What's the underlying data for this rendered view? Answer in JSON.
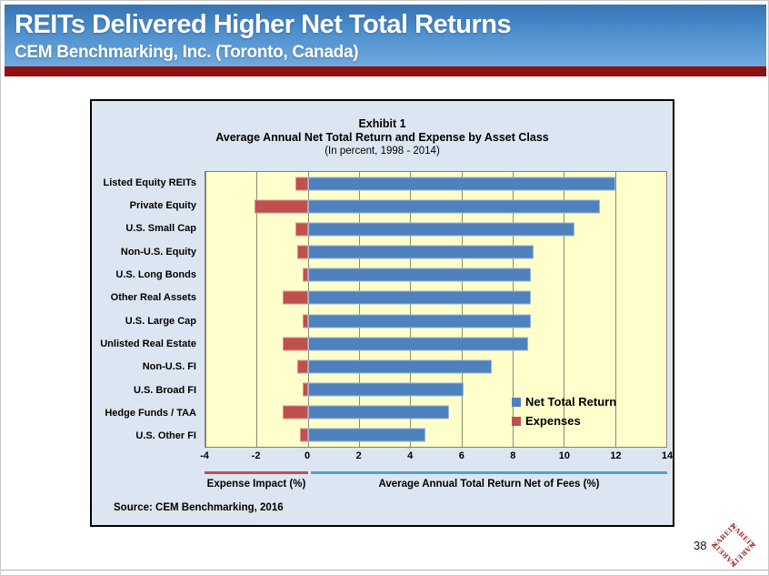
{
  "header": {
    "title": "REITs Delivered Higher Net Total Returns",
    "subtitle": "CEM Benchmarking, Inc. (Toronto, Canada)"
  },
  "chart": {
    "title_line1": "Exhibit 1",
    "title_line2": "Average Annual Net Total Return and Expense by Asset Class",
    "title_line3": "(In percent, 1998 - 2014)",
    "expense_axis_label": "Expense Impact (%)",
    "return_axis_label": "Average Annual Total Return Net of Fees (%)",
    "source": "Source: CEM Benchmarking, 2016"
  },
  "chart_data": {
    "type": "bar",
    "orientation": "horizontal",
    "title": "Exhibit 1 — Average Annual Net Total Return and Expense by Asset Class (In percent, 1998 - 2014)",
    "categories": [
      "Listed Equity REITs",
      "Private Equity",
      "U.S. Small Cap",
      "Non-U.S. Equity",
      "U.S. Long Bonds",
      "Other Real Assets",
      "U.S. Large Cap",
      "Unlisted Real Estate",
      "Non-U.S. FI",
      "U.S. Broad FI",
      "Hedge Funds / TAA",
      "U.S. Other FI"
    ],
    "series": [
      {
        "name": "Net Total Return",
        "color": "#4F81BD",
        "values": [
          12.0,
          11.4,
          10.4,
          8.8,
          8.7,
          8.7,
          8.7,
          8.6,
          7.2,
          6.1,
          5.5,
          4.6
        ]
      },
      {
        "name": "Expenses",
        "color": "#C0504D",
        "values": [
          -0.5,
          -2.1,
          -0.5,
          -0.4,
          -0.2,
          -1.0,
          -0.2,
          -1.0,
          -0.4,
          -0.2,
          -1.0,
          -0.3
        ]
      }
    ],
    "xlim": [
      -4,
      14
    ],
    "xticks": [
      -4,
      -2,
      0,
      2,
      4,
      6,
      8,
      10,
      12,
      14
    ],
    "grid": true,
    "legend_position": "inside-right",
    "plot_bg": "#FFFFCC",
    "chart_bg": "#DCE6F2"
  },
  "colors": {
    "header_gradient_top": "#3674B4",
    "header_gradient_bottom": "#6FA9DF",
    "red_divider": "#8E1111",
    "bar_blue": "#4F81BD",
    "bar_red": "#C0504D"
  },
  "footer": {
    "page_number": "38",
    "logo_text": "NAREIT"
  }
}
